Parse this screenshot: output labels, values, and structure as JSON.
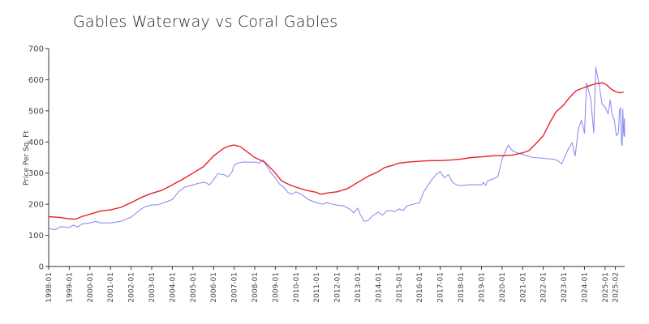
{
  "chart_data": {
    "type": "line",
    "title": "Gables Waterway vs Coral Gables",
    "xlabel": "",
    "ylabel": "Price Per Sq. Ft",
    "ylim": [
      0,
      700
    ],
    "yticks": [
      0,
      100,
      200,
      300,
      400,
      500,
      600,
      700
    ],
    "xlim": [
      1998.0,
      2025.95
    ],
    "xtick_labels": [
      "1998-01",
      "1999-01",
      "2000-01",
      "2001-01",
      "2002-01",
      "2003-01",
      "2004-01",
      "2005-01",
      "2006-01",
      "2007-01",
      "2008-01",
      "2009-01",
      "2010-01",
      "2011-01",
      "2012-01",
      "2013-01",
      "2014-01",
      "2015-01",
      "2016-01",
      "2017-01",
      "2018-01",
      "2019-01",
      "2020-01",
      "2021-01",
      "2022-01",
      "2023-01",
      "2024-01",
      "2025-01",
      "2025-02"
    ],
    "grid": false,
    "legend": "none",
    "series": [
      {
        "color": "#e8202a",
        "points": [
          [
            1998.0,
            160
          ],
          [
            1998.5,
            158
          ],
          [
            1999.0,
            153
          ],
          [
            1999.3,
            152
          ],
          [
            1999.6,
            160
          ],
          [
            2000.0,
            168
          ],
          [
            2000.5,
            178
          ],
          [
            2001.0,
            182
          ],
          [
            2001.5,
            190
          ],
          [
            2002.0,
            205
          ],
          [
            2002.5,
            222
          ],
          [
            2003.0,
            235
          ],
          [
            2003.5,
            245
          ],
          [
            2004.0,
            262
          ],
          [
            2004.5,
            280
          ],
          [
            2005.0,
            300
          ],
          [
            2005.5,
            320
          ],
          [
            2006.0,
            355
          ],
          [
            2006.5,
            380
          ],
          [
            2006.8,
            388
          ],
          [
            2007.0,
            390
          ],
          [
            2007.3,
            385
          ],
          [
            2007.6,
            370
          ],
          [
            2008.0,
            350
          ],
          [
            2008.5,
            335
          ],
          [
            2009.0,
            300
          ],
          [
            2009.3,
            275
          ],
          [
            2009.7,
            262
          ],
          [
            2010.0,
            255
          ],
          [
            2010.5,
            245
          ],
          [
            2011.0,
            238
          ],
          [
            2011.2,
            232
          ],
          [
            2011.6,
            237
          ],
          [
            2012.0,
            240
          ],
          [
            2012.5,
            250
          ],
          [
            2013.0,
            270
          ],
          [
            2013.5,
            290
          ],
          [
            2014.0,
            305
          ],
          [
            2014.3,
            318
          ],
          [
            2014.7,
            325
          ],
          [
            2015.0,
            332
          ],
          [
            2015.5,
            336
          ],
          [
            2016.0,
            338
          ],
          [
            2016.5,
            340
          ],
          [
            2017.0,
            340
          ],
          [
            2017.5,
            342
          ],
          [
            2018.0,
            345
          ],
          [
            2018.5,
            350
          ],
          [
            2019.0,
            352
          ],
          [
            2019.3,
            354
          ],
          [
            2019.6,
            356
          ],
          [
            2020.0,
            356
          ],
          [
            2020.5,
            358
          ],
          [
            2021.0,
            365
          ],
          [
            2021.3,
            372
          ],
          [
            2021.6,
            392
          ],
          [
            2022.0,
            420
          ],
          [
            2022.3,
            460
          ],
          [
            2022.6,
            495
          ],
          [
            2023.0,
            520
          ],
          [
            2023.3,
            545
          ],
          [
            2023.6,
            565
          ],
          [
            2024.0,
            575
          ],
          [
            2024.3,
            582
          ],
          [
            2024.6,
            588
          ],
          [
            2024.9,
            590
          ],
          [
            2025.1,
            582
          ],
          [
            2025.3,
            570
          ],
          [
            2025.5,
            562
          ],
          [
            2025.7,
            558
          ],
          [
            2025.9,
            560
          ]
        ]
      },
      {
        "color": "#8f8ff0",
        "points": [
          [
            1998.0,
            123
          ],
          [
            1998.3,
            118
          ],
          [
            1998.6,
            128
          ],
          [
            1999.0,
            125
          ],
          [
            1999.2,
            133
          ],
          [
            1999.4,
            127
          ],
          [
            1999.6,
            136
          ],
          [
            2000.0,
            140
          ],
          [
            2000.3,
            145
          ],
          [
            2000.5,
            140
          ],
          [
            2001.0,
            140
          ],
          [
            2001.5,
            145
          ],
          [
            2002.0,
            158
          ],
          [
            2002.3,
            175
          ],
          [
            2002.6,
            190
          ],
          [
            2003.0,
            198
          ],
          [
            2003.3,
            198
          ],
          [
            2003.6,
            205
          ],
          [
            2004.0,
            215
          ],
          [
            2004.3,
            240
          ],
          [
            2004.6,
            255
          ],
          [
            2005.0,
            262
          ],
          [
            2005.3,
            268
          ],
          [
            2005.6,
            270
          ],
          [
            2005.8,
            262
          ],
          [
            2006.0,
            278
          ],
          [
            2006.2,
            298
          ],
          [
            2006.5,
            295
          ],
          [
            2006.7,
            288
          ],
          [
            2006.9,
            305
          ],
          [
            2007.0,
            325
          ],
          [
            2007.2,
            333
          ],
          [
            2007.5,
            336
          ],
          [
            2007.8,
            335
          ],
          [
            2008.0,
            336
          ],
          [
            2008.2,
            332
          ],
          [
            2008.4,
            342
          ],
          [
            2008.6,
            320
          ],
          [
            2008.8,
            300
          ],
          [
            2009.0,
            285
          ],
          [
            2009.2,
            265
          ],
          [
            2009.4,
            255
          ],
          [
            2009.6,
            238
          ],
          [
            2009.8,
            232
          ],
          [
            2010.0,
            240
          ],
          [
            2010.3,
            230
          ],
          [
            2010.6,
            215
          ],
          [
            2011.0,
            205
          ],
          [
            2011.3,
            200
          ],
          [
            2011.5,
            205
          ],
          [
            2011.8,
            200
          ],
          [
            2012.0,
            197
          ],
          [
            2012.3,
            195
          ],
          [
            2012.6,
            185
          ],
          [
            2012.8,
            172
          ],
          [
            2013.0,
            188
          ],
          [
            2013.1,
            170
          ],
          [
            2013.3,
            145
          ],
          [
            2013.5,
            148
          ],
          [
            2013.7,
            162
          ],
          [
            2014.0,
            175
          ],
          [
            2014.2,
            165
          ],
          [
            2014.4,
            178
          ],
          [
            2014.6,
            180
          ],
          [
            2014.8,
            176
          ],
          [
            2015.0,
            185
          ],
          [
            2015.2,
            180
          ],
          [
            2015.4,
            195
          ],
          [
            2015.6,
            198
          ],
          [
            2015.8,
            202
          ],
          [
            2016.0,
            205
          ],
          [
            2016.2,
            240
          ],
          [
            2016.4,
            260
          ],
          [
            2016.6,
            280
          ],
          [
            2016.8,
            295
          ],
          [
            2017.0,
            305
          ],
          [
            2017.2,
            285
          ],
          [
            2017.4,
            295
          ],
          [
            2017.6,
            270
          ],
          [
            2017.8,
            262
          ],
          [
            2018.0,
            260
          ],
          [
            2018.3,
            262
          ],
          [
            2018.6,
            263
          ],
          [
            2019.0,
            262
          ],
          [
            2019.1,
            270
          ],
          [
            2019.2,
            260
          ],
          [
            2019.3,
            275
          ],
          [
            2019.4,
            278
          ],
          [
            2019.6,
            282
          ],
          [
            2019.8,
            290
          ],
          [
            2020.0,
            345
          ],
          [
            2020.3,
            390
          ],
          [
            2020.5,
            372
          ],
          [
            2020.7,
            366
          ],
          [
            2021.0,
            360
          ],
          [
            2021.5,
            350
          ],
          [
            2022.0,
            348
          ],
          [
            2022.2,
            346
          ],
          [
            2022.5,
            345
          ],
          [
            2022.7,
            340
          ],
          [
            2022.9,
            330
          ],
          [
            2023.2,
            375
          ],
          [
            2023.4,
            398
          ],
          [
            2023.55,
            355
          ],
          [
            2023.7,
            440
          ],
          [
            2023.85,
            470
          ],
          [
            2024.0,
            428
          ],
          [
            2024.1,
            590
          ],
          [
            2024.3,
            540
          ],
          [
            2024.45,
            430
          ],
          [
            2024.55,
            640
          ],
          [
            2024.7,
            590
          ],
          [
            2024.85,
            522
          ],
          [
            2025.0,
            512
          ],
          [
            2025.15,
            490
          ],
          [
            2025.25,
            535
          ],
          [
            2025.35,
            485
          ],
          [
            2025.45,
            470
          ],
          [
            2025.55,
            420
          ],
          [
            2025.65,
            430
          ],
          [
            2025.7,
            500
          ],
          [
            2025.75,
            510
          ],
          [
            2025.8,
            395
          ],
          [
            2025.83,
            388
          ],
          [
            2025.86,
            505
          ],
          [
            2025.88,
            470
          ],
          [
            2025.9,
            430
          ],
          [
            2025.92,
            418
          ],
          [
            2025.94,
            475
          ],
          [
            2025.95,
            418
          ]
        ]
      }
    ]
  }
}
